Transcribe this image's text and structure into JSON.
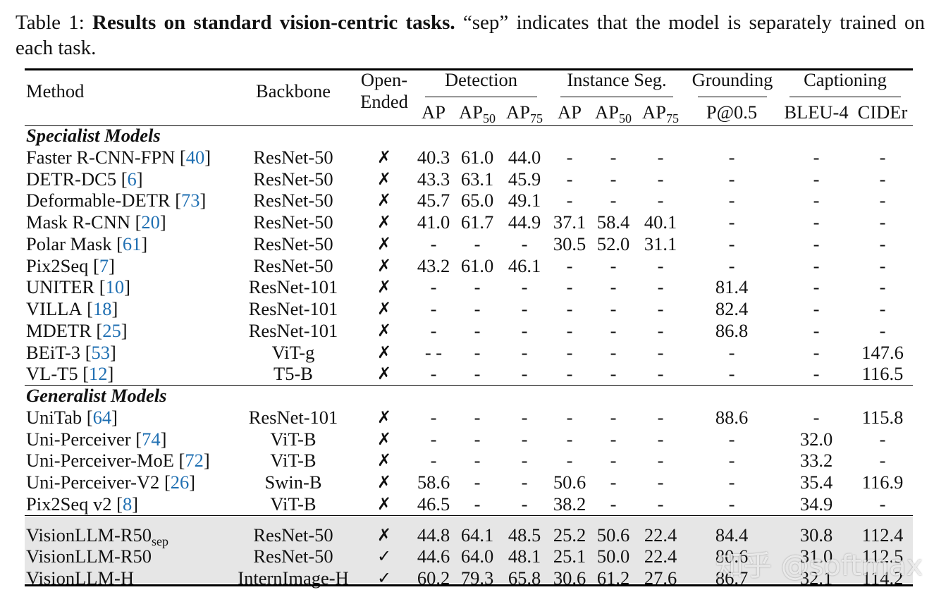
{
  "caption": {
    "label": "Table 1:",
    "bold": "Results on standard vision-centric tasks.",
    "text": "“sep” indicates that the model is separately trained on each task."
  },
  "table": {
    "header": {
      "method": "Method",
      "backbone": "Backbone",
      "open_ended": [
        "Open-",
        "Ended"
      ],
      "groups": [
        {
          "label": "Detection",
          "columns": [
            {
              "text": "AP"
            },
            {
              "text": "AP",
              "sub": "50"
            },
            {
              "text": "AP",
              "sub": "75"
            }
          ]
        },
        {
          "label": "Instance Seg.",
          "columns": [
            {
              "text": "AP"
            },
            {
              "text": "AP",
              "sub": "50"
            },
            {
              "text": "AP",
              "sub": "75"
            }
          ]
        },
        {
          "label": "Grounding",
          "columns": [
            {
              "text": "P@0.5"
            }
          ]
        },
        {
          "label": "Captioning",
          "columns": [
            {
              "text": "BLEU-4"
            },
            {
              "text": "CIDEr"
            }
          ]
        }
      ]
    },
    "sections": [
      {
        "title": "Specialist Models",
        "rows": [
          {
            "method": "Faster R-CNN-FPN",
            "ref": "[40]",
            "backbone": "ResNet-50",
            "open_ended": "✗",
            "values": [
              "40.3",
              "61.0",
              "44.0",
              "-",
              "-",
              "-",
              "-",
              "-",
              "-"
            ]
          },
          {
            "method": "DETR-DC5",
            "ref": "[6]",
            "backbone": "ResNet-50",
            "open_ended": "✗",
            "values": [
              "43.3",
              "63.1",
              "45.9",
              "-",
              "-",
              "-",
              "-",
              "-",
              "-"
            ]
          },
          {
            "method": "Deformable-DETR",
            "ref": "[73]",
            "backbone": "ResNet-50",
            "open_ended": "✗",
            "values": [
              "45.7",
              "65.0",
              "49.1",
              "-",
              "-",
              "-",
              "-",
              "-",
              "-"
            ]
          },
          {
            "method": "Mask R-CNN",
            "ref": "[20]",
            "backbone": "ResNet-50",
            "open_ended": "✗",
            "values": [
              "41.0",
              "61.7",
              "44.9",
              "37.1",
              "58.4",
              "40.1",
              "-",
              "-",
              "-"
            ]
          },
          {
            "method": "Polar Mask",
            "ref": "[61]",
            "backbone": "ResNet-50",
            "open_ended": "✗",
            "values": [
              "-",
              "-",
              "-",
              "30.5",
              "52.0",
              "31.1",
              "-",
              "-",
              "-"
            ]
          },
          {
            "method": "Pix2Seq",
            "ref": "[7]",
            "backbone": "ResNet-50",
            "open_ended": "✗",
            "values": [
              "43.2",
              "61.0",
              "46.1",
              "-",
              "-",
              "-",
              "-",
              "-",
              "-"
            ]
          },
          {
            "method": "UNITER",
            "ref": "[10]",
            "backbone": "ResNet-101",
            "open_ended": "✗",
            "values": [
              "-",
              "-",
              "-",
              "-",
              "-",
              "-",
              "81.4",
              "-",
              "-"
            ]
          },
          {
            "method": "VILLA",
            "ref": "[18]",
            "backbone": "ResNet-101",
            "open_ended": "✗",
            "values": [
              "-",
              "-",
              "-",
              "-",
              "-",
              "-",
              "82.4",
              "-",
              "-"
            ]
          },
          {
            "method": "MDETR",
            "ref": "[25]",
            "backbone": "ResNet-101",
            "open_ended": "✗",
            "values": [
              "-",
              "-",
              "-",
              "-",
              "-",
              "-",
              "86.8",
              "-",
              "-"
            ]
          },
          {
            "method": "BEiT-3",
            "ref": "[53]",
            "backbone": "ViT-g",
            "open_ended": "✗",
            "values": [
              "- -",
              "-",
              "-",
              "-",
              "-",
              "-",
              "-",
              "-",
              "147.6"
            ]
          },
          {
            "method": "VL-T5",
            "ref": "[12]",
            "backbone": "T5-B",
            "open_ended": "✗",
            "values": [
              "-",
              "-",
              "-",
              "-",
              "-",
              "-",
              "-",
              "-",
              "116.5"
            ]
          }
        ]
      },
      {
        "title": "Generalist Models",
        "rows": [
          {
            "method": "UniTab",
            "ref": "[64]",
            "backbone": "ResNet-101",
            "open_ended": "✗",
            "values": [
              "-",
              "-",
              "-",
              "-",
              "-",
              "-",
              "88.6",
              "-",
              "115.8"
            ]
          },
          {
            "method": "Uni-Perceiver",
            "ref": "[74]",
            "backbone": "ViT-B",
            "open_ended": "✗",
            "values": [
              "-",
              "-",
              "-",
              "-",
              "-",
              "-",
              "-",
              "32.0",
              "-"
            ]
          },
          {
            "method": "Uni-Perceiver-MoE",
            "ref": "[72]",
            "backbone": "ViT-B",
            "open_ended": "✗",
            "values": [
              "-",
              "-",
              "-",
              "-",
              "-",
              "-",
              "-",
              "33.2",
              "-"
            ]
          },
          {
            "method": "Uni-Perceiver-V2",
            "ref": "[26]",
            "backbone": "Swin-B",
            "open_ended": "✗",
            "values": [
              "58.6",
              "-",
              "-",
              "50.6",
              "-",
              "-",
              "-",
              "35.4",
              "116.9"
            ]
          },
          {
            "method": "Pix2Seq v2",
            "ref": "[8]",
            "backbone": "ViT-B",
            "open_ended": "✗",
            "values": [
              "46.5",
              "-",
              "-",
              "38.2",
              "-",
              "-",
              "-",
              "34.9",
              "-"
            ]
          }
        ]
      },
      {
        "highlight": true,
        "rows": [
          {
            "method": "VisionLLM-R50",
            "method_sub": "sep",
            "backbone": "ResNet-50",
            "open_ended": "✗",
            "values": [
              "44.8",
              "64.1",
              "48.5",
              "25.2",
              "50.6",
              "22.4",
              "84.4",
              "30.8",
              "112.4"
            ]
          },
          {
            "method": "VisionLLM-R50",
            "backbone": "ResNet-50",
            "open_ended": "✓",
            "values": [
              "44.6",
              "64.0",
              "48.1",
              "25.1",
              "50.0",
              "22.4",
              "80.6",
              "31.0",
              "112.5"
            ]
          },
          {
            "method": "VisionLLM-H",
            "backbone": "InternImage-H",
            "open_ended": "✓",
            "values": [
              "60.2",
              "79.3",
              "65.8",
              "30.6",
              "61.2",
              "27.6",
              "86.7",
              "32.1",
              "114.2"
            ]
          }
        ]
      }
    ]
  },
  "watermark": "知乎 @softmax"
}
